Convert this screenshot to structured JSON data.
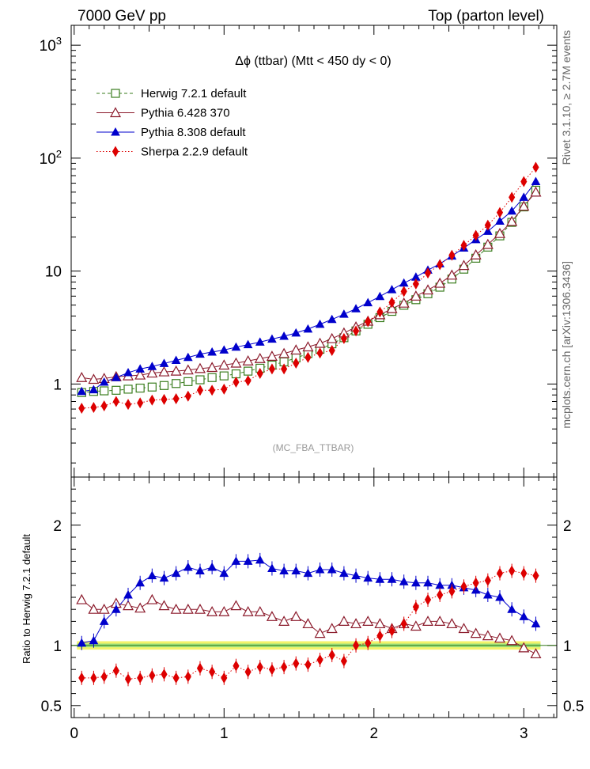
{
  "header": {
    "left": "7000 GeV pp",
    "right": "Top (parton level)"
  },
  "side_labels": {
    "rivet": "Rivet 3.1.10, ≥ 2.7M events",
    "source": "mcplots.cern.ch [arXiv:1306.3436]"
  },
  "chart_data": [
    {
      "type": "scatter",
      "title": "Δϕ (ttbar) (Mtt < 450 dy < 0)",
      "watermark": "(MC_FBA_TTBAR)",
      "xlabel": "",
      "ylabel": "",
      "xlim": [
        -0.02,
        3.22
      ],
      "ylim": [
        0.15,
        1500
      ],
      "yscale": "log",
      "y_ticks": [
        "1",
        "10",
        "10^2",
        "10^3"
      ],
      "x_ticks": [
        "0",
        "1",
        "2",
        "3"
      ],
      "legend_position": "top-left",
      "x": [
        0.05,
        0.13,
        0.2,
        0.28,
        0.36,
        0.44,
        0.52,
        0.6,
        0.68,
        0.76,
        0.84,
        0.92,
        1.0,
        1.08,
        1.16,
        1.24,
        1.32,
        1.4,
        1.48,
        1.56,
        1.64,
        1.72,
        1.8,
        1.88,
        1.96,
        2.04,
        2.12,
        2.2,
        2.28,
        2.36,
        2.44,
        2.52,
        2.6,
        2.68,
        2.76,
        2.84,
        2.92,
        3.0,
        3.08
      ],
      "series": [
        {
          "name": "Herwig 7.2.1 default",
          "color": "#3a7d1e",
          "marker": "open-square",
          "line": "dashed",
          "values": [
            0.84,
            0.86,
            0.87,
            0.88,
            0.9,
            0.92,
            0.94,
            0.97,
            1.01,
            1.05,
            1.09,
            1.14,
            1.18,
            1.23,
            1.3,
            1.38,
            1.47,
            1.57,
            1.7,
            1.86,
            2.03,
            2.27,
            2.57,
            2.95,
            3.38,
            3.87,
            4.4,
            4.98,
            5.58,
            6.3,
            7.2,
            8.5,
            10.4,
            13.0,
            16.3,
            20.5,
            27.0,
            37.0,
            52.0
          ]
        },
        {
          "name": "Pythia 6.428 370",
          "color": "#8b1a2b",
          "marker": "open-triangle",
          "line": "solid",
          "values": [
            1.14,
            1.1,
            1.12,
            1.16,
            1.18,
            1.2,
            1.25,
            1.28,
            1.3,
            1.33,
            1.37,
            1.4,
            1.47,
            1.53,
            1.6,
            1.68,
            1.76,
            1.86,
            2.0,
            2.13,
            2.29,
            2.52,
            2.83,
            3.2,
            3.6,
            4.1,
            4.65,
            5.2,
            6.0,
            6.8,
            7.8,
            9.2,
            11.2,
            13.9,
            17.2,
            21.5,
            27.5,
            37.5,
            50.0
          ]
        },
        {
          "name": "Pythia 8.308 default",
          "color": "#0000cc",
          "marker": "filled-triangle",
          "line": "solid",
          "values": [
            0.86,
            0.89,
            1.04,
            1.14,
            1.26,
            1.36,
            1.43,
            1.52,
            1.62,
            1.72,
            1.84,
            1.92,
            2.0,
            2.12,
            2.23,
            2.35,
            2.5,
            2.65,
            2.83,
            3.07,
            3.38,
            3.73,
            4.15,
            4.64,
            5.25,
            5.96,
            6.85,
            7.83,
            8.85,
            10.2,
            11.6,
            13.6,
            16.0,
            19.0,
            22.5,
            27.7,
            34.0,
            45.0,
            62.0
          ]
        },
        {
          "name": "Sherpa 2.2.9 default",
          "color": "#dd0000",
          "marker": "filled-diamond",
          "line": "dotted",
          "values": [
            0.61,
            0.62,
            0.64,
            0.7,
            0.66,
            0.68,
            0.72,
            0.73,
            0.74,
            0.78,
            0.88,
            0.88,
            0.9,
            1.04,
            1.07,
            1.24,
            1.36,
            1.36,
            1.53,
            1.72,
            1.88,
            1.98,
            2.53,
            2.95,
            3.57,
            4.34,
            5.28,
            6.6,
            7.7,
            9.6,
            11.4,
            13.8,
            16.9,
            20.7,
            25.5,
            33.0,
            45.0,
            62.0,
            83.0
          ]
        }
      ]
    },
    {
      "type": "scatter",
      "ylabel": "Ratio to Herwig 7.2.1 default",
      "xlim": [
        -0.02,
        3.22
      ],
      "ylim": [
        0.4,
        2.4
      ],
      "y_ticks": [
        "0.5",
        "1",
        "2"
      ],
      "x_ticks": [
        "0",
        "1",
        "2",
        "3"
      ],
      "reference_band": "green/yellow band around 1",
      "x": [
        0.05,
        0.13,
        0.2,
        0.28,
        0.36,
        0.44,
        0.52,
        0.6,
        0.68,
        0.76,
        0.84,
        0.92,
        1.0,
        1.08,
        1.16,
        1.24,
        1.32,
        1.4,
        1.48,
        1.56,
        1.64,
        1.72,
        1.8,
        1.88,
        1.96,
        2.04,
        2.12,
        2.2,
        2.28,
        2.36,
        2.44,
        2.52,
        2.6,
        2.68,
        2.76,
        2.84,
        2.92,
        3.0,
        3.08
      ],
      "series": [
        {
          "name": "Herwig 7.2.1 default",
          "color": "#3a7d1e",
          "marker": "none",
          "line": "solid",
          "values": [
            1,
            1,
            1,
            1,
            1,
            1,
            1,
            1,
            1,
            1,
            1,
            1,
            1,
            1,
            1,
            1,
            1,
            1,
            1,
            1,
            1,
            1,
            1,
            1,
            1,
            1,
            1,
            1,
            1,
            1,
            1,
            1,
            1,
            1,
            1,
            1,
            1,
            1,
            1
          ]
        },
        {
          "name": "Pythia 6.428 370",
          "color": "#8b1a2b",
          "marker": "open-triangle",
          "line": "solid",
          "values": [
            1.38,
            1.3,
            1.3,
            1.35,
            1.33,
            1.31,
            1.38,
            1.33,
            1.3,
            1.3,
            1.3,
            1.28,
            1.28,
            1.33,
            1.28,
            1.28,
            1.24,
            1.2,
            1.24,
            1.18,
            1.1,
            1.14,
            1.2,
            1.18,
            1.2,
            1.18,
            1.14,
            1.18,
            1.16,
            1.2,
            1.2,
            1.18,
            1.14,
            1.1,
            1.08,
            1.06,
            1.04,
            0.98,
            0.93
          ]
        },
        {
          "name": "Pythia 8.308 default",
          "color": "#0000cc",
          "marker": "filled-triangle",
          "line": "solid",
          "values": [
            1.02,
            1.04,
            1.2,
            1.3,
            1.42,
            1.52,
            1.58,
            1.56,
            1.6,
            1.65,
            1.62,
            1.65,
            1.6,
            1.7,
            1.7,
            1.71,
            1.64,
            1.62,
            1.62,
            1.6,
            1.63,
            1.63,
            1.6,
            1.58,
            1.56,
            1.55,
            1.55,
            1.53,
            1.52,
            1.52,
            1.5,
            1.5,
            1.48,
            1.46,
            1.42,
            1.4,
            1.3,
            1.24,
            1.18
          ]
        },
        {
          "name": "Sherpa 2.2.9 default",
          "color": "#dd0000",
          "marker": "filled-diamond",
          "line": "dotted",
          "values": [
            0.73,
            0.73,
            0.74,
            0.79,
            0.72,
            0.73,
            0.75,
            0.76,
            0.73,
            0.74,
            0.81,
            0.78,
            0.73,
            0.83,
            0.78,
            0.82,
            0.8,
            0.82,
            0.85,
            0.84,
            0.88,
            0.92,
            0.87,
            1.0,
            1.02,
            1.08,
            1.12,
            1.18,
            1.32,
            1.38,
            1.42,
            1.45,
            1.49,
            1.52,
            1.54,
            1.6,
            1.62,
            1.6,
            1.58
          ]
        }
      ]
    }
  ]
}
